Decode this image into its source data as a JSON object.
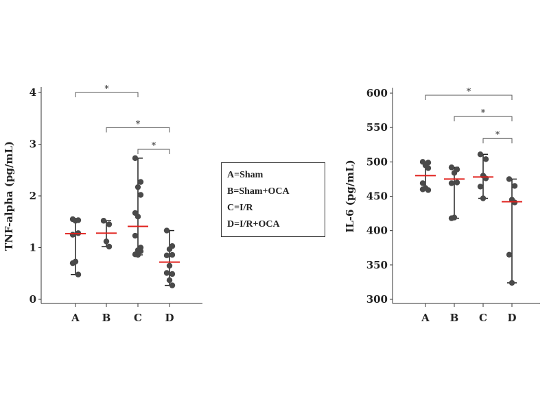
{
  "legend": [
    "A=Sham",
    "B=Sham+OCA",
    "C=I/R",
    "D=I/R+OCA"
  ],
  "chart_data": [
    {
      "type": "scatter",
      "title": "",
      "xlabel": "",
      "ylabel": "TNF-alpha (pg/mL)",
      "categories": [
        "A",
        "B",
        "C",
        "D"
      ],
      "ylim": [
        0,
        4
      ],
      "yticks": [
        0,
        1,
        2,
        3,
        4
      ],
      "points": [
        [
          1.55,
          1.53,
          1.52,
          1.28,
          1.25,
          0.73,
          0.7,
          0.48
        ],
        [
          1.52,
          1.45,
          1.12,
          1.02
        ],
        [
          2.73,
          2.27,
          2.17,
          2.02,
          1.67,
          1.6,
          1.23,
          1.0,
          0.95,
          0.93,
          0.87,
          0.86
        ],
        [
          1.33,
          1.03,
          0.97,
          0.86,
          0.85,
          0.65,
          0.51,
          0.49,
          0.37,
          0.27
        ]
      ],
      "medians": [
        1.27,
        1.28,
        1.41,
        0.72
      ],
      "significance": [
        {
          "from": "A",
          "to": "C",
          "level": 4.0,
          "label": "*"
        },
        {
          "from": "B",
          "to": "D",
          "level": 3.32,
          "label": "*"
        },
        {
          "from": "C",
          "to": "D",
          "level": 2.9,
          "label": "*"
        }
      ],
      "point_color": "#4a4a4a",
      "median_color": "#e0201c"
    },
    {
      "type": "scatter",
      "title": "",
      "xlabel": "",
      "ylabel": "IL-6 (pg/mL)",
      "categories": [
        "A",
        "B",
        "C",
        "D"
      ],
      "ylim": [
        300,
        600
      ],
      "yticks": [
        300,
        350,
        400,
        450,
        500,
        550,
        600
      ],
      "points": [
        [
          500,
          499,
          495,
          491,
          469,
          462,
          460,
          459
        ],
        [
          492,
          489,
          484,
          470,
          469,
          419,
          418
        ],
        [
          511,
          504,
          480,
          476,
          464,
          447
        ],
        [
          475,
          465,
          445,
          441,
          365,
          324
        ]
      ],
      "medians": [
        480,
        475,
        478,
        442
      ],
      "significance": [
        {
          "from": "A",
          "to": "D",
          "level": 597,
          "label": "*"
        },
        {
          "from": "B",
          "to": "D",
          "level": 566,
          "label": "*"
        },
        {
          "from": "C",
          "to": "D",
          "level": 534,
          "label": "*"
        }
      ],
      "point_color": "#4a4a4a",
      "median_color": "#e0201c"
    }
  ]
}
